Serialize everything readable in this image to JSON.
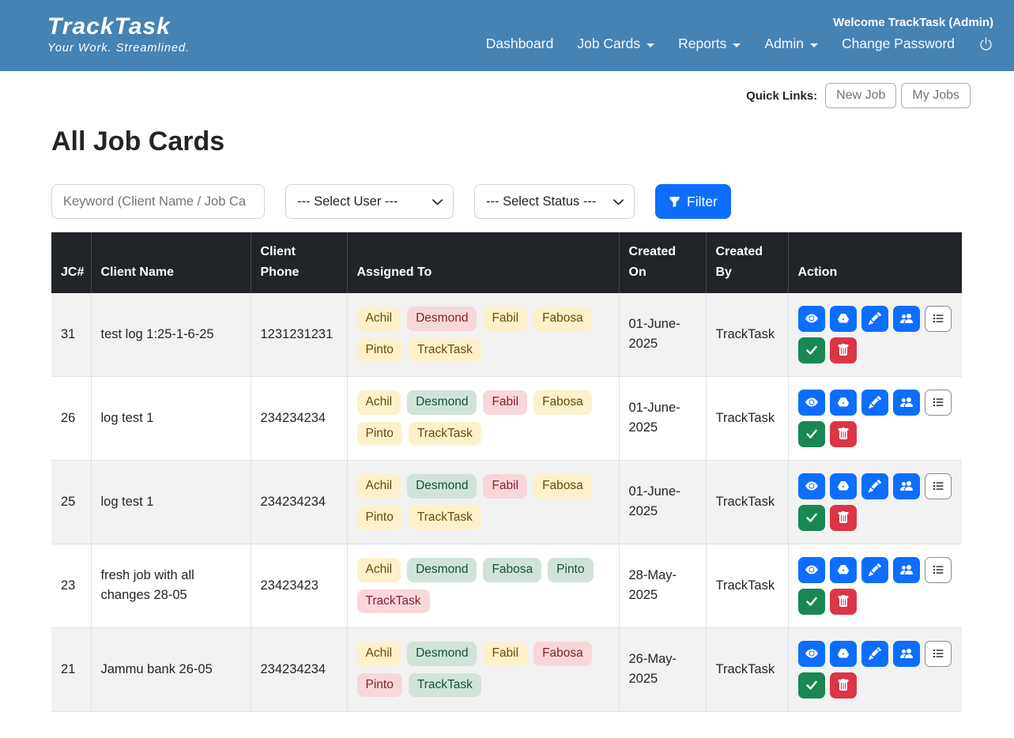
{
  "colors": {
    "navbar_bg": "#4583b5",
    "primary": "#0d6efd",
    "success": "#198754",
    "danger": "#dc3545",
    "table_header_bg": "#212529",
    "badge_yellow_bg": "#fdf1cb",
    "badge_green_bg": "#d1e3d9",
    "badge_pink_bg": "#f8d7da"
  },
  "navbar": {
    "brand": "TrackTask",
    "tagline": "Your Work. Streamlined.",
    "welcome": "Welcome TrackTask (Admin)",
    "items": [
      {
        "label": "Dashboard",
        "dropdown": false
      },
      {
        "label": "Job Cards",
        "dropdown": true
      },
      {
        "label": "Reports",
        "dropdown": true
      },
      {
        "label": "Admin",
        "dropdown": true
      },
      {
        "label": "Change Password",
        "dropdown": false
      }
    ]
  },
  "quick_links": {
    "label": "Quick Links:",
    "buttons": [
      "New Job",
      "My Jobs"
    ]
  },
  "page_title": "All Job Cards",
  "filters": {
    "keyword_placeholder": "Keyword (Client Name / Job Ca",
    "user_select": "--- Select User ---",
    "status_select": "--- Select Status ---",
    "filter_button": "Filter"
  },
  "table": {
    "headers": [
      "JC#",
      "Client Name",
      "Client Phone",
      "Assigned To",
      "Created On",
      "Created By",
      "Action"
    ],
    "actions": [
      {
        "icon": "eye",
        "variant": "primary"
      },
      {
        "icon": "drive",
        "variant": "primary"
      },
      {
        "icon": "pencil",
        "variant": "primary"
      },
      {
        "icon": "users",
        "variant": "primary"
      },
      {
        "icon": "list",
        "variant": "outline"
      },
      {
        "icon": "check",
        "variant": "success"
      },
      {
        "icon": "trash",
        "variant": "danger"
      }
    ],
    "rows": [
      {
        "jc": "31",
        "client": "test log 1:25-1-6-25",
        "phone": "1231231231",
        "assigned": [
          {
            "name": "Achil",
            "color": "yellow"
          },
          {
            "name": "Desmond",
            "color": "pink"
          },
          {
            "name": "Fabil",
            "color": "yellow"
          },
          {
            "name": "Fabosa",
            "color": "yellow"
          },
          {
            "name": "Pinto",
            "color": "yellow"
          },
          {
            "name": "TrackTask",
            "color": "yellow"
          }
        ],
        "created_on": "01-June-2025",
        "created_by": "TrackTask"
      },
      {
        "jc": "26",
        "client": "log test 1",
        "phone": "234234234",
        "assigned": [
          {
            "name": "Achil",
            "color": "yellow"
          },
          {
            "name": "Desmond",
            "color": "green"
          },
          {
            "name": "Fabil",
            "color": "pink"
          },
          {
            "name": "Fabosa",
            "color": "yellow"
          },
          {
            "name": "Pinto",
            "color": "yellow"
          },
          {
            "name": "TrackTask",
            "color": "yellow"
          }
        ],
        "created_on": "01-June-2025",
        "created_by": "TrackTask"
      },
      {
        "jc": "25",
        "client": "log test 1",
        "phone": "234234234",
        "assigned": [
          {
            "name": "Achil",
            "color": "yellow"
          },
          {
            "name": "Desmond",
            "color": "green"
          },
          {
            "name": "Fabil",
            "color": "pink"
          },
          {
            "name": "Fabosa",
            "color": "yellow"
          },
          {
            "name": "Pinto",
            "color": "yellow"
          },
          {
            "name": "TrackTask",
            "color": "yellow"
          }
        ],
        "created_on": "01-June-2025",
        "created_by": "TrackTask"
      },
      {
        "jc": "23",
        "client": "fresh job with all changes 28-05",
        "phone": "23423423",
        "assigned": [
          {
            "name": "Achil",
            "color": "yellow"
          },
          {
            "name": "Desmond",
            "color": "green"
          },
          {
            "name": "Fabosa",
            "color": "green"
          },
          {
            "name": "Pinto",
            "color": "green"
          },
          {
            "name": "TrackTask",
            "color": "pink"
          }
        ],
        "created_on": "28-May-2025",
        "created_by": "TrackTask"
      },
      {
        "jc": "21",
        "client": "Jammu bank 26-05",
        "phone": "234234234",
        "assigned": [
          {
            "name": "Achil",
            "color": "yellow"
          },
          {
            "name": "Desmond",
            "color": "green"
          },
          {
            "name": "Fabil",
            "color": "yellow"
          },
          {
            "name": "Fabosa",
            "color": "pink"
          },
          {
            "name": "Pinto",
            "color": "pink"
          },
          {
            "name": "TrackTask",
            "color": "green"
          }
        ],
        "created_on": "26-May-2025",
        "created_by": "TrackTask"
      }
    ]
  }
}
